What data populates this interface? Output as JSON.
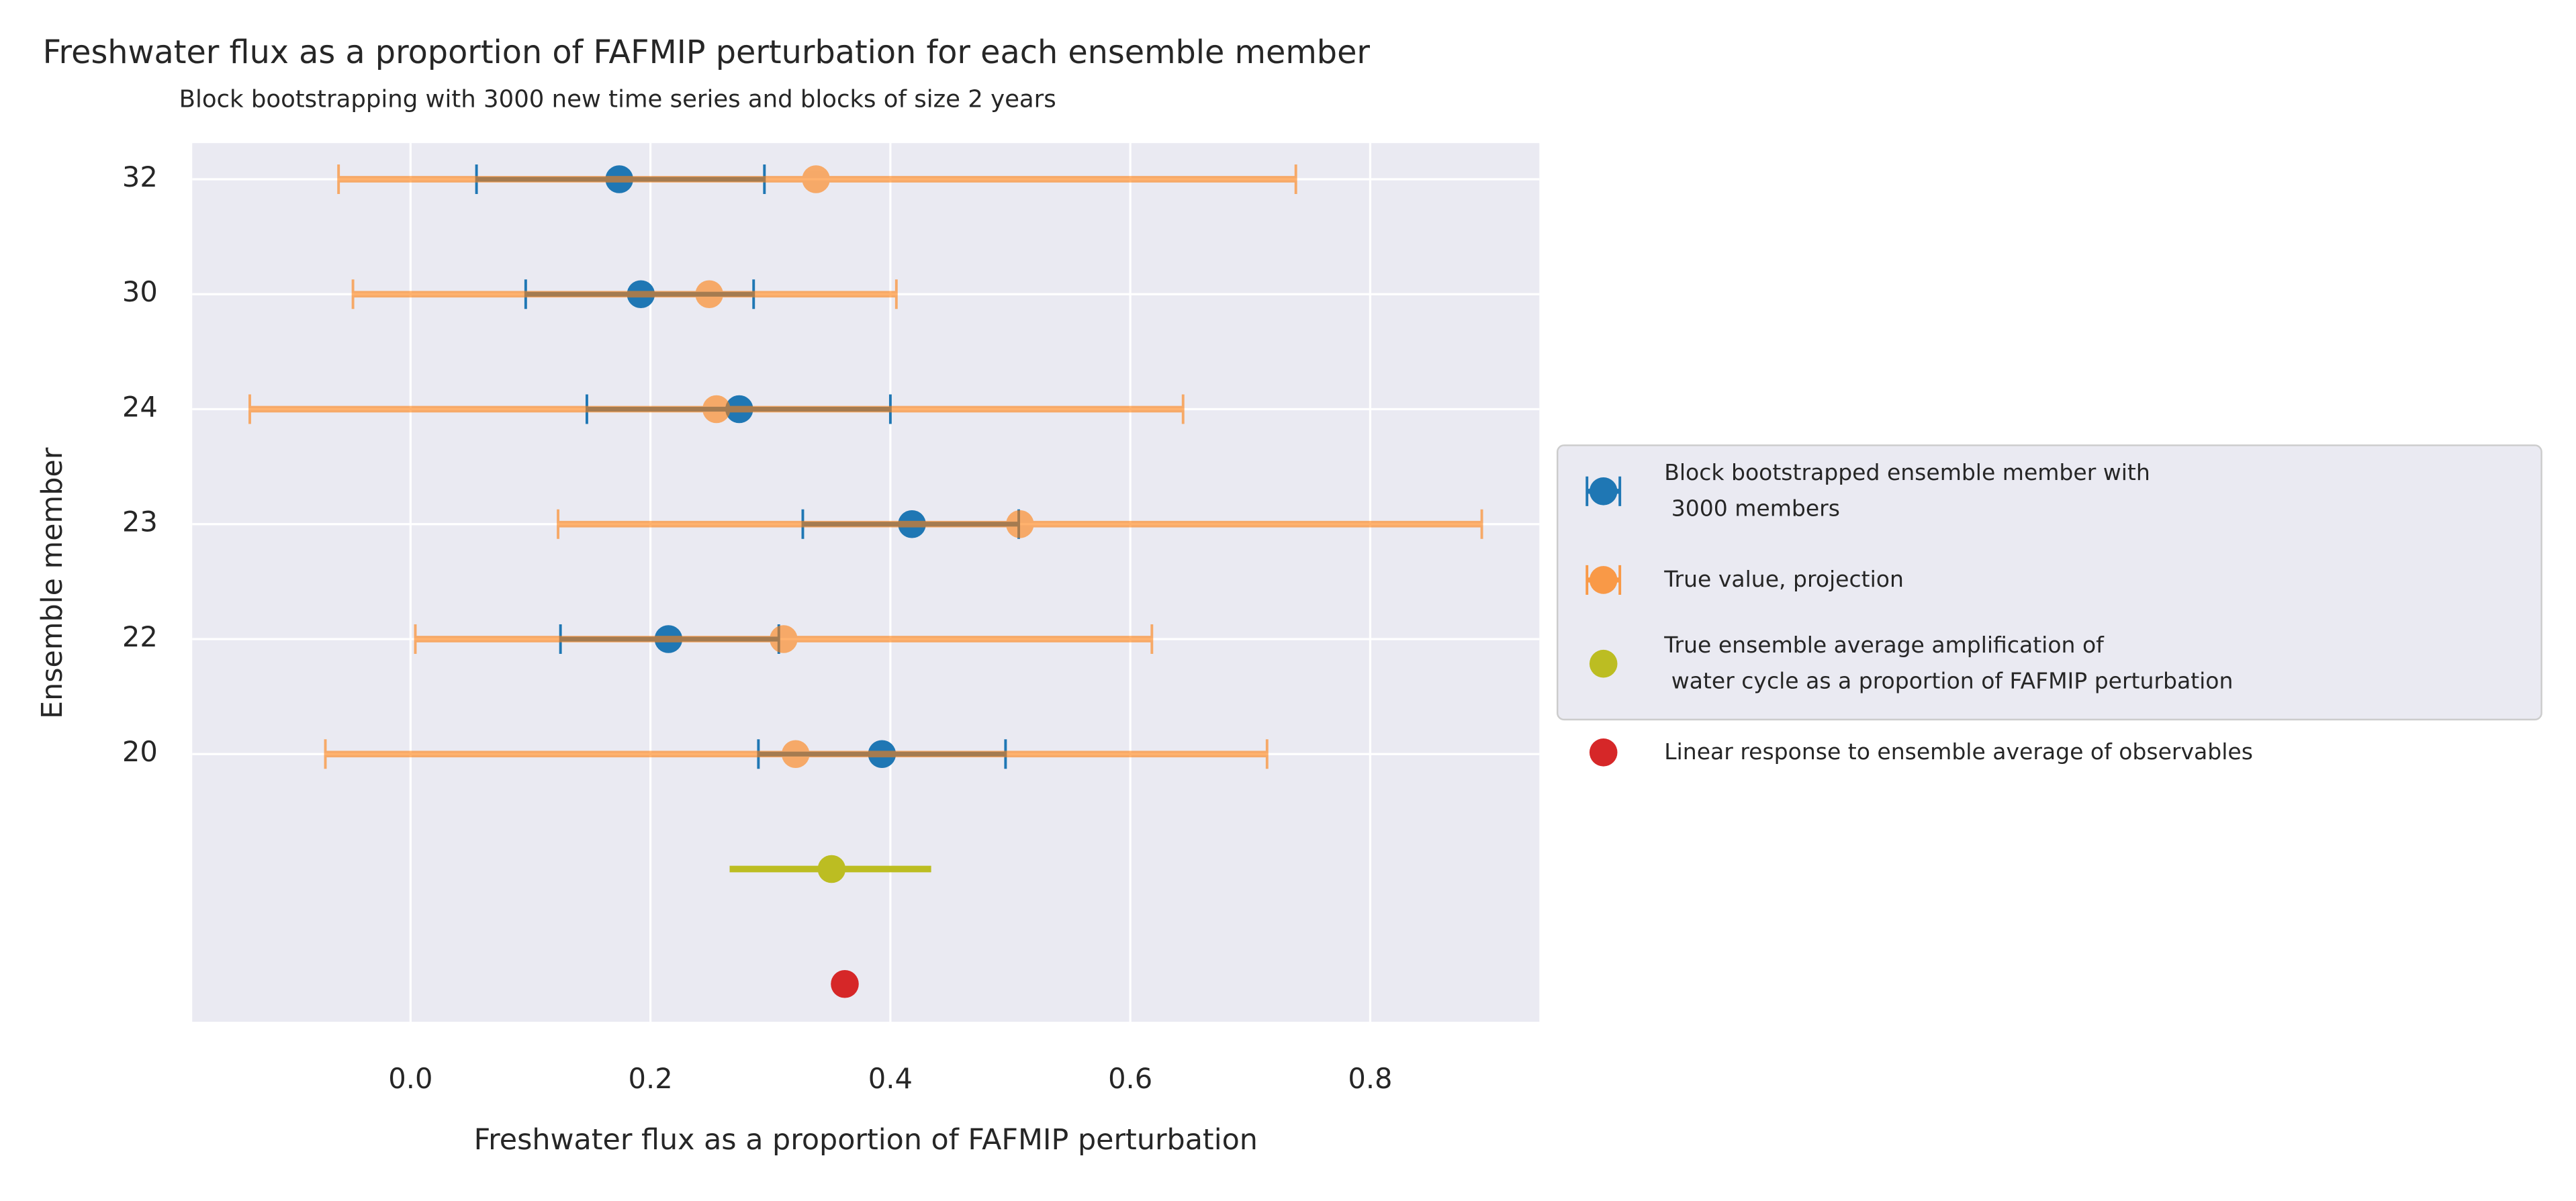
{
  "chart_data": {
    "type": "errorbar",
    "title": "Freshwater flux as a proportion of FAFMIP perturbation for each ensemble member",
    "subtitle": "Block bootstrapping with 3000 new time series and blocks of size 2 years",
    "x_label": "Freshwater flux as a proportion of FAFMIP perturbation",
    "y_label": "Ensemble member",
    "categories": [
      "32",
      "30",
      "24",
      "23",
      "22",
      "20",
      null,
      null
    ],
    "xlim": [
      -0.182,
      0.941
    ],
    "xticks": [
      {
        "value": 0,
        "label": "0.0"
      },
      0.2,
      0.4,
      0.6,
      0.8
    ],
    "grid": true,
    "legend": "right",
    "series": [
      {
        "name": "Block bootstrapped ensemble member with\n 3000 members",
        "color": "#1f77b4",
        "caps": true,
        "values": [
          0.174,
          0.192,
          0.274,
          0.418,
          0.215,
          0.393,
          null,
          null
        ],
        "lower": [
          0.055,
          0.096,
          0.147,
          0.327,
          0.125,
          0.29,
          null,
          null
        ],
        "upper": [
          0.295,
          0.286,
          0.4,
          0.507,
          0.307,
          0.496,
          null,
          null
        ]
      },
      {
        "name": "True value, projection",
        "color": "#ff7f0e",
        "caps": true,
        "opacity": 0.6,
        "values": [
          0.338,
          0.249,
          0.255,
          0.508,
          0.311,
          0.321,
          null,
          null
        ],
        "lower": [
          -0.06,
          -0.048,
          -0.134,
          0.123,
          0.004,
          -0.071,
          null,
          null
        ],
        "upper": [
          0.738,
          0.405,
          0.644,
          0.893,
          0.618,
          0.714,
          null,
          null
        ]
      },
      {
        "name": "True ensemble average amplification of\n water cycle as a proportion of FAFMIP perturbation",
        "color": "#bcbd22",
        "caps": false,
        "values": [
          null,
          null,
          null,
          null,
          null,
          null,
          0.351,
          null
        ],
        "lower": [
          null,
          null,
          null,
          null,
          null,
          null,
          0.266,
          null
        ],
        "upper": [
          null,
          null,
          null,
          null,
          null,
          null,
          0.434,
          null
        ]
      },
      {
        "name": "Linear response to ensemble average of observables",
        "color": "#d62728",
        "values": [
          null,
          null,
          null,
          null,
          null,
          null,
          null,
          0.362
        ]
      }
    ]
  }
}
